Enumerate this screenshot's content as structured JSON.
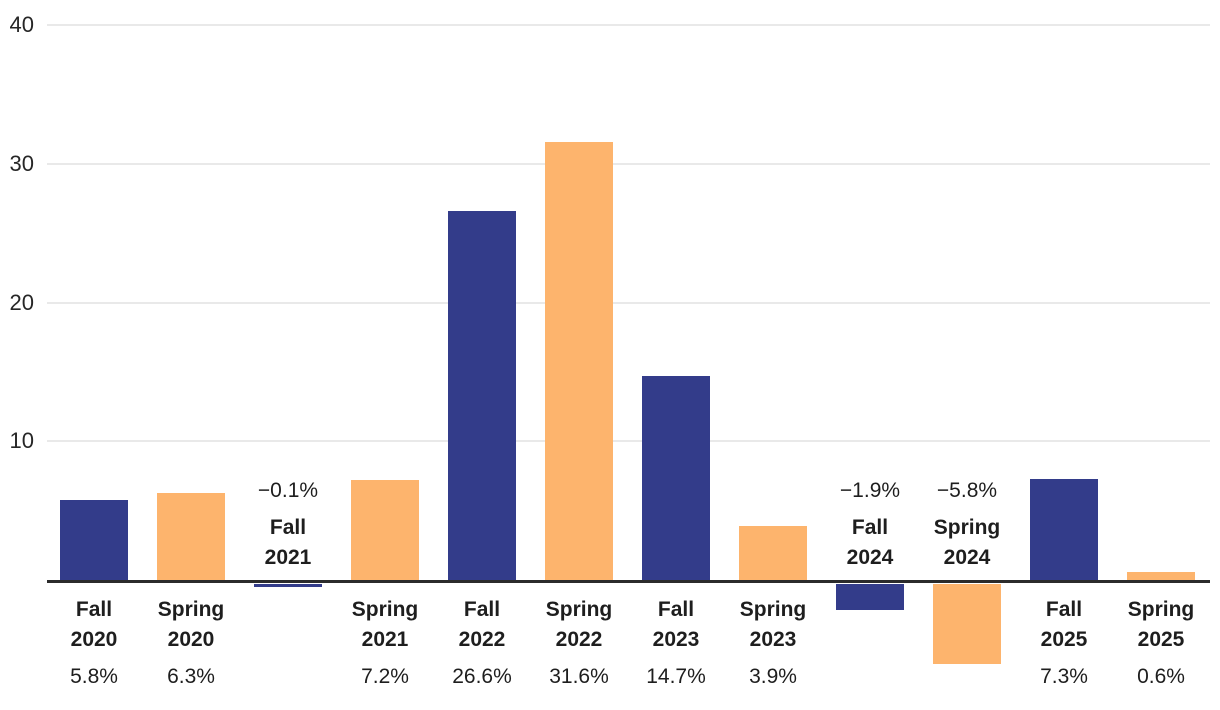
{
  "chart_data": {
    "type": "bar",
    "title": "",
    "legend": "none",
    "grid": "horizontal",
    "categories": [
      "Fall 2020",
      "Spring 2020",
      "Fall 2021",
      "Spring 2021",
      "Fall 2022",
      "Spring 2022",
      "Fall 2023",
      "Spring 2023",
      "Fall 2024",
      "Spring 2024",
      "Fall 2025",
      "Spring 2025"
    ],
    "bars": [
      {
        "season": "Fall",
        "year": "2020",
        "value": 5.8,
        "value_label": "5.8%",
        "series": "Fall"
      },
      {
        "season": "Spring",
        "year": "2020",
        "value": 6.3,
        "value_label": "6.3%",
        "series": "Spring"
      },
      {
        "season": "Fall",
        "year": "2021",
        "value": -0.1,
        "value_label": "−0.1%",
        "series": "Fall"
      },
      {
        "season": "Spring",
        "year": "2021",
        "value": 7.2,
        "value_label": "7.2%",
        "series": "Spring"
      },
      {
        "season": "Fall",
        "year": "2022",
        "value": 26.6,
        "value_label": "26.6%",
        "series": "Fall"
      },
      {
        "season": "Spring",
        "year": "2022",
        "value": 31.6,
        "value_label": "31.6%",
        "series": "Spring"
      },
      {
        "season": "Fall",
        "year": "2023",
        "value": 14.7,
        "value_label": "14.7%",
        "series": "Fall"
      },
      {
        "season": "Spring",
        "year": "2023",
        "value": 3.9,
        "value_label": "3.9%",
        "series": "Spring"
      },
      {
        "season": "Fall",
        "year": "2024",
        "value": -1.9,
        "value_label": "−1.9%",
        "series": "Fall"
      },
      {
        "season": "Spring",
        "year": "2024",
        "value": -5.8,
        "value_label": "−5.8%",
        "series": "Spring"
      },
      {
        "season": "Fall",
        "year": "2025",
        "value": 7.3,
        "value_label": "7.3%",
        "series": "Fall"
      },
      {
        "season": "Spring",
        "year": "2025",
        "value": 0.6,
        "value_label": "0.6%",
        "series": "Spring"
      }
    ],
    "y_axis": {
      "ticks": [
        40,
        30,
        20,
        10
      ],
      "tick_labels": [
        "40",
        "30",
        "20",
        "10"
      ],
      "range": [
        -9,
        42
      ]
    },
    "series_colors": {
      "Fall": "#333c8a",
      "Spring": "#fdb46d"
    },
    "gridline_color": "#e9e9e9",
    "axis_line_color": "#2b2b2b",
    "text_color": "#1e1e1e"
  }
}
